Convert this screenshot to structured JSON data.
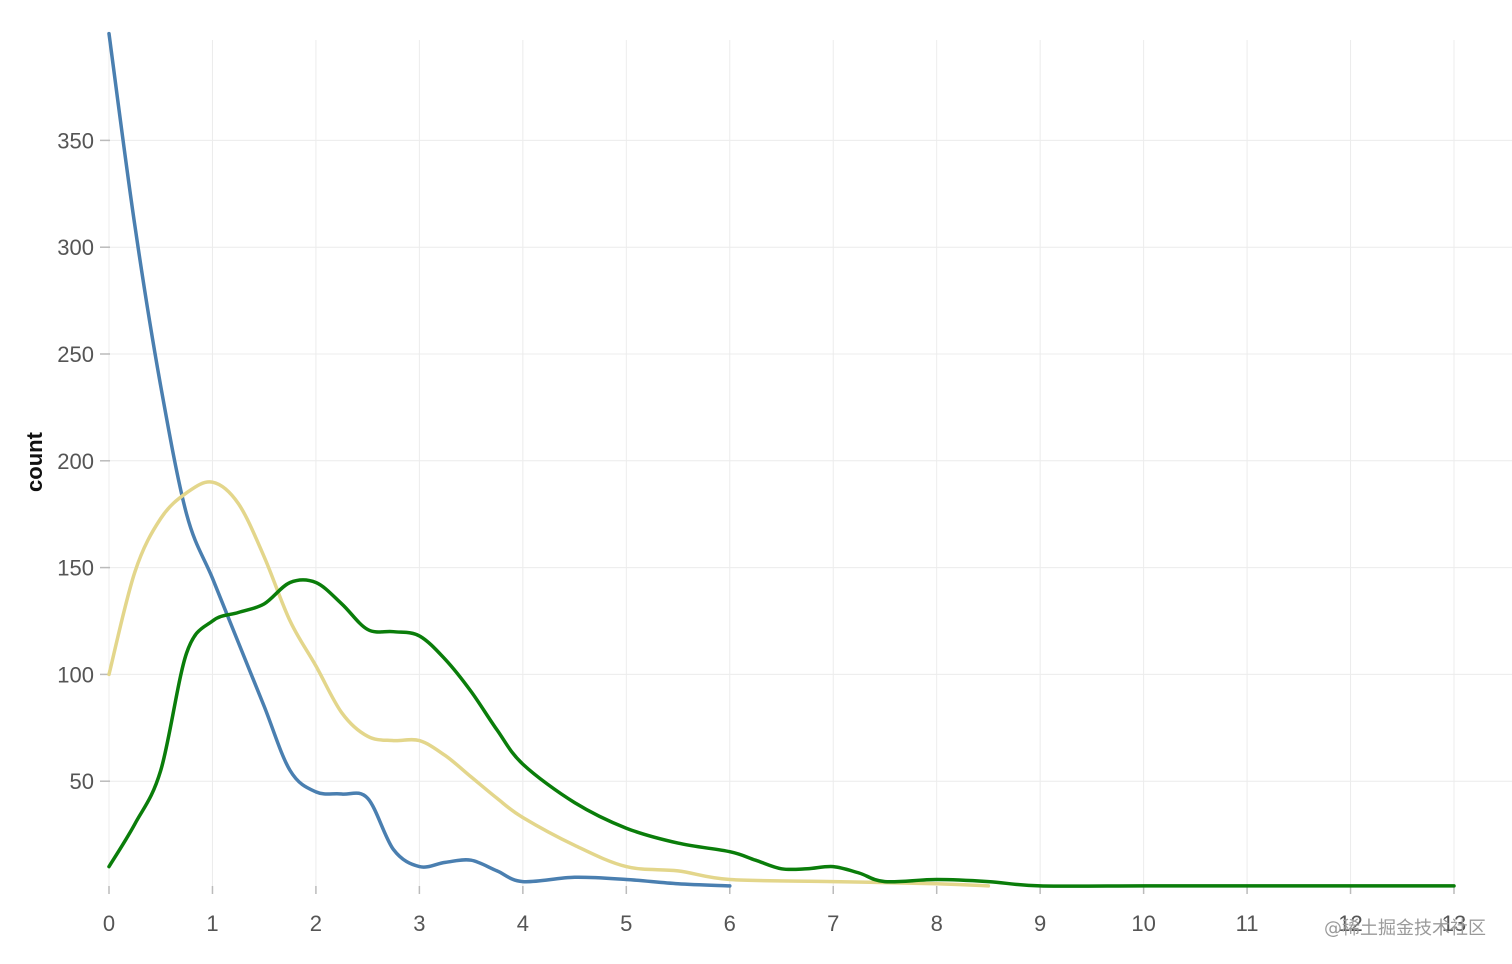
{
  "chart_data": {
    "type": "line",
    "ylabel": "count",
    "xlabel": "",
    "xlim": [
      0,
      13
    ],
    "ylim": [
      0,
      397
    ],
    "xticks": [
      "0",
      "1",
      "2",
      "3",
      "4",
      "5",
      "6",
      "7",
      "8",
      "9",
      "10",
      "11",
      "12",
      "13"
    ],
    "yticks": [
      "50",
      "100",
      "150",
      "200",
      "250",
      "300",
      "350"
    ],
    "grid": true,
    "series": [
      {
        "color": "#4a7fb0",
        "x": [
          0,
          0.25,
          0.5,
          0.75,
          1,
          1.25,
          1.5,
          1.75,
          2,
          2.25,
          2.5,
          2.75,
          3,
          3.25,
          3.5,
          3.75,
          4,
          4.5,
          5,
          5.5,
          6
        ],
        "y": [
          400,
          310,
          235,
          175,
          145,
          115,
          85,
          55,
          45,
          44,
          42,
          18,
          10,
          12,
          13,
          8,
          3,
          5,
          4,
          2,
          1
        ]
      },
      {
        "color": "#e3d68b",
        "x": [
          0,
          0.25,
          0.5,
          0.75,
          1,
          1.25,
          1.5,
          1.75,
          2,
          2.25,
          2.5,
          2.75,
          3,
          3.25,
          3.5,
          3.75,
          4,
          4.5,
          5,
          5.5,
          6,
          7,
          8,
          8.5
        ],
        "y": [
          100,
          148,
          173,
          185,
          190,
          180,
          155,
          125,
          104,
          82,
          71,
          69,
          69,
          62,
          52,
          42,
          33,
          20,
          10,
          8,
          4,
          3,
          2,
          1
        ]
      },
      {
        "color": "#0a7d0a",
        "x": [
          0,
          0.25,
          0.5,
          0.75,
          1,
          1.25,
          1.5,
          1.75,
          2,
          2.25,
          2.5,
          2.75,
          3,
          3.25,
          3.5,
          3.75,
          4,
          4.5,
          5,
          5.5,
          6,
          6.25,
          6.5,
          6.75,
          7,
          7.25,
          7.5,
          8,
          8.5,
          9,
          10,
          11,
          12,
          13
        ],
        "y": [
          10,
          30,
          55,
          110,
          125,
          129,
          133,
          143,
          143,
          133,
          121,
          120,
          118,
          107,
          92,
          74,
          58,
          40,
          28,
          21,
          17,
          13,
          9,
          9,
          10,
          7,
          3,
          4,
          3,
          1,
          1,
          1,
          1,
          1
        ]
      }
    ]
  },
  "watermark": "@稀土掘金技术社区"
}
